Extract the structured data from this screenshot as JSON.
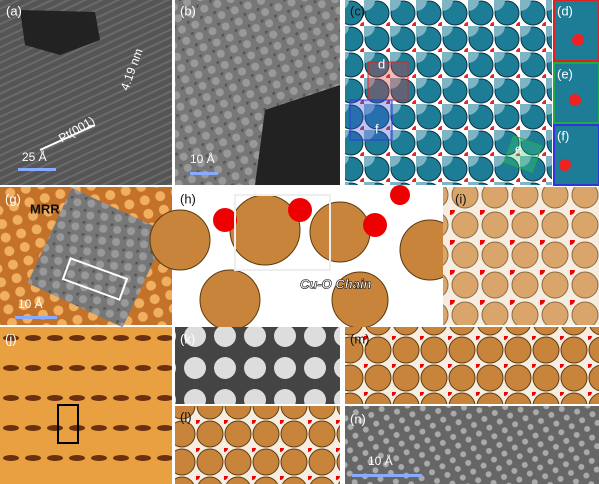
{
  "panels": {
    "a": {
      "label": "(a)",
      "scale_bar": "25 Å",
      "spacing": "4.19 nm",
      "direction": "Pt(001)"
    },
    "b": {
      "label": "(b)",
      "scale_bar": "10 Å"
    },
    "c": {
      "label": "(c)",
      "markers": [
        "d",
        "f",
        "e"
      ]
    },
    "d": {
      "label": "(d)"
    },
    "e": {
      "label": "(e)"
    },
    "f": {
      "label": "(f)"
    },
    "g": {
      "label": "(g)",
      "annotation": "MRR",
      "scale_bar": "10 Å"
    },
    "h": {
      "label": "(h)",
      "annotation": "Cu-O Chain"
    },
    "i": {
      "label": "(i)"
    },
    "j": {
      "label": "(j)"
    },
    "k": {
      "label": "(k)"
    },
    "l": {
      "label": "(l)"
    },
    "m": {
      "label": "(m)"
    },
    "n": {
      "label": "(n)",
      "scale_bar": "10 Å"
    }
  }
}
